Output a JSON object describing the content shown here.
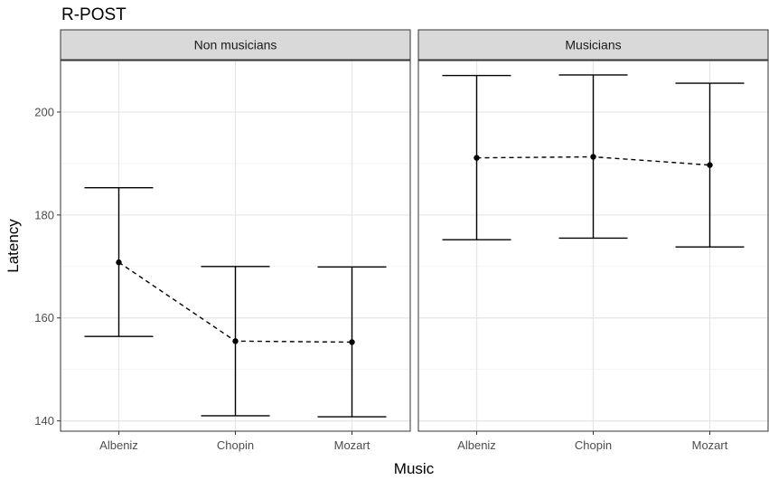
{
  "chart_data": {
    "type": "line",
    "title": "R-POST",
    "xlabel": "Music",
    "ylabel": "Latency",
    "categories": [
      "Albeniz",
      "Chopin",
      "Mozart"
    ],
    "ylim": [
      138,
      210
    ],
    "yticks": [
      140,
      160,
      180,
      200
    ],
    "grid": true,
    "panels": [
      {
        "label": "Non musicians",
        "means": [
          170.8,
          155.5,
          155.3
        ],
        "lower": [
          156.4,
          141.0,
          140.8
        ],
        "upper": [
          185.3,
          170.0,
          169.9
        ]
      },
      {
        "label": "Musicians",
        "means": [
          191.1,
          191.3,
          189.7
        ],
        "lower": [
          175.2,
          175.5,
          173.8
        ],
        "upper": [
          207.1,
          207.2,
          205.6
        ]
      }
    ]
  }
}
